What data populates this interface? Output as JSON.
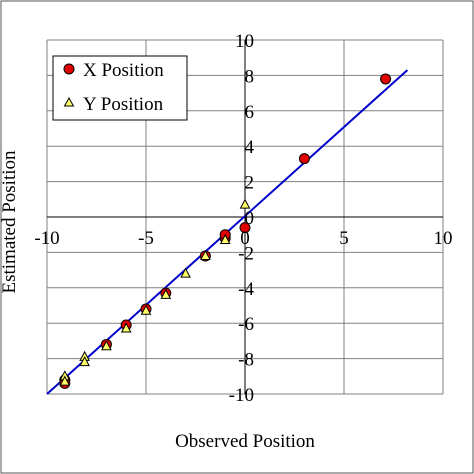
{
  "chart_data": {
    "type": "scatter",
    "title": "",
    "xlabel": "Observed Position",
    "ylabel": "Estimated Position",
    "xlim": [
      -10,
      10
    ],
    "ylim": [
      -10,
      10
    ],
    "x_ticks": [
      -10,
      -5,
      0,
      5,
      10
    ],
    "y_ticks": [
      10,
      8,
      6,
      4,
      2,
      0,
      -2,
      -4,
      -6,
      -8,
      -10
    ],
    "x_tick_labels": [
      "-10",
      "-5",
      "0",
      "5",
      "10"
    ],
    "y_tick_labels": [
      "10",
      "8",
      "6",
      "4",
      "2",
      "0",
      "-2",
      "-4",
      "-6",
      "-8",
      "-10"
    ],
    "grid": true,
    "legend_position": "top-left",
    "series": [
      {
        "name": "X Position",
        "marker": "circle",
        "color": "#e00000",
        "points": [
          {
            "x": -9.1,
            "y": -9.2
          },
          {
            "x": -9.1,
            "y": -9.4
          },
          {
            "x": -7.0,
            "y": -7.2
          },
          {
            "x": -6.0,
            "y": -6.1
          },
          {
            "x": -5.0,
            "y": -5.2
          },
          {
            "x": -4.0,
            "y": -4.3
          },
          {
            "x": -2.0,
            "y": -2.2
          },
          {
            "x": -1.0,
            "y": -1.2
          },
          {
            "x": -1.0,
            "y": -1.0
          },
          {
            "x": 0.0,
            "y": -0.6
          },
          {
            "x": 3.0,
            "y": 3.3
          },
          {
            "x": 7.1,
            "y": 7.8
          }
        ]
      },
      {
        "name": "Y Position",
        "marker": "triangle",
        "color": "#ffff66",
        "points": [
          {
            "x": -9.1,
            "y": -9.0
          },
          {
            "x": -9.1,
            "y": -9.3
          },
          {
            "x": -8.1,
            "y": -7.9
          },
          {
            "x": -8.1,
            "y": -8.2
          },
          {
            "x": -7.0,
            "y": -7.3
          },
          {
            "x": -6.0,
            "y": -6.3
          },
          {
            "x": -5.0,
            "y": -5.3
          },
          {
            "x": -4.0,
            "y": -4.4
          },
          {
            "x": -3.0,
            "y": -3.2
          },
          {
            "x": -2.0,
            "y": -2.2
          },
          {
            "x": -1.0,
            "y": -1.3
          },
          {
            "x": 0.0,
            "y": 0.7
          }
        ]
      }
    ],
    "fit_line": {
      "color": "#0000cc",
      "from": {
        "x": -10,
        "y": -10
      },
      "to": {
        "x": 8.2,
        "y": 8.3
      }
    }
  }
}
